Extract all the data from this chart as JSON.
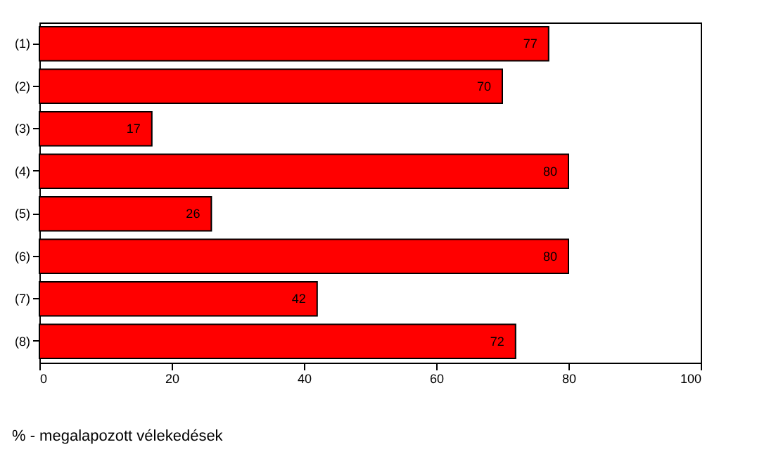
{
  "chart_data": {
    "type": "bar",
    "orientation": "horizontal",
    "categories": [
      "(1)",
      "(2)",
      "(3)",
      "(4)",
      "(5)",
      "(6)",
      "(7)",
      "(8)"
    ],
    "values": [
      77,
      70,
      17,
      80,
      26,
      80,
      42,
      72
    ],
    "color": "#ff0000",
    "xlim": [
      0,
      100
    ],
    "xticks": [
      0,
      20,
      40,
      60,
      80,
      100
    ],
    "xlabel": "% - megalapozott vélekedések",
    "data_labels": true,
    "grid": false
  }
}
